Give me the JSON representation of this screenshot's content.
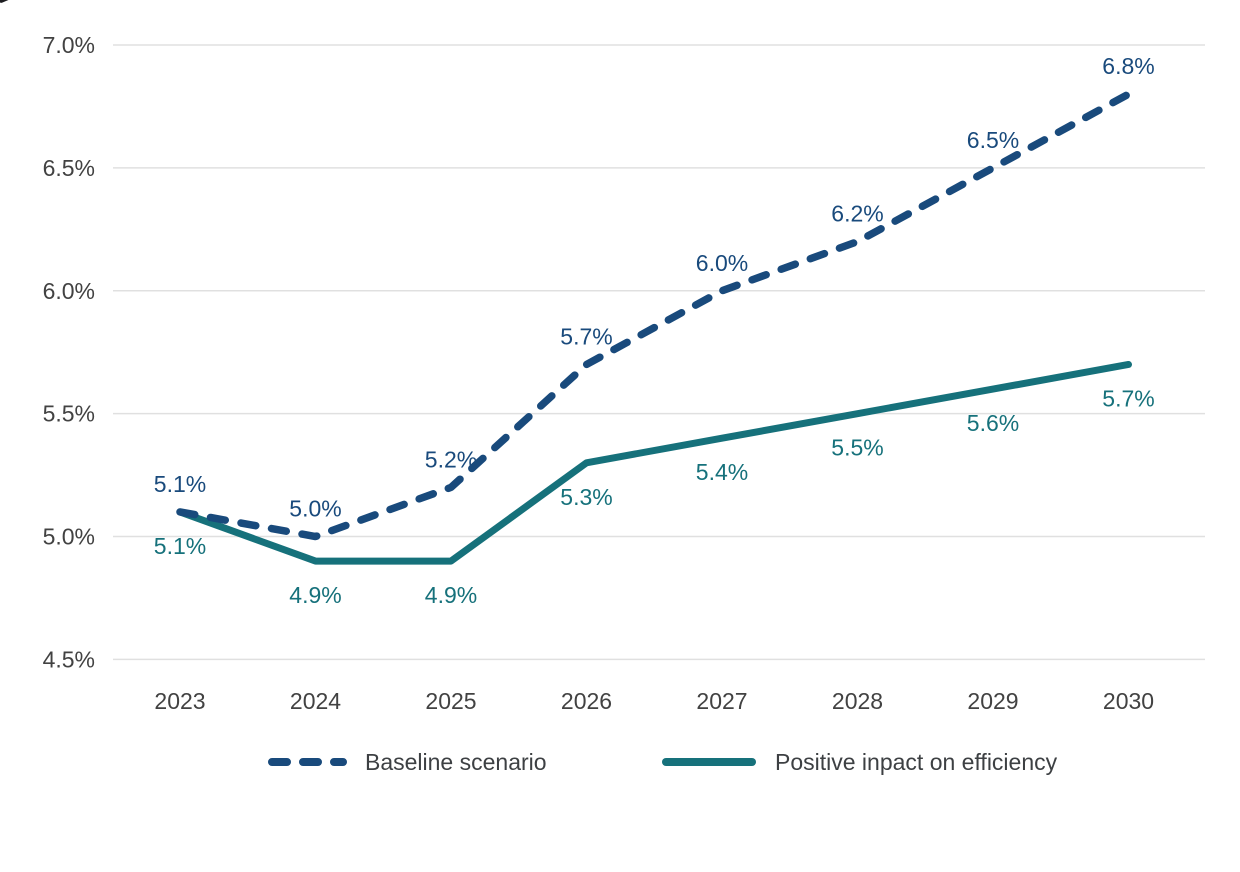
{
  "chart_data": {
    "type": "line",
    "categories": [
      "2023",
      "2024",
      "2025",
      "2026",
      "2027",
      "2028",
      "2029",
      "2030"
    ],
    "series": [
      {
        "name": "Baseline scenario",
        "style": "dashed",
        "color": "#194a7c",
        "values": [
          5.1,
          5.0,
          5.2,
          5.7,
          6.0,
          6.2,
          6.5,
          6.8
        ],
        "point_labels": [
          "5.1%",
          "5.0%",
          "5.2%",
          "5.7%",
          "6.0%",
          "6.2%",
          "6.5%",
          "6.8%"
        ],
        "label_position": "above"
      },
      {
        "name": "Positive inpact on efficiency",
        "style": "solid",
        "color": "#16717b",
        "values": [
          5.1,
          4.9,
          4.9,
          5.3,
          5.4,
          5.5,
          5.6,
          5.7
        ],
        "point_labels": [
          "5.1%",
          "4.9%",
          "4.9%",
          "5.3%",
          "5.4%",
          "5.5%",
          "5.6%",
          "5.7%"
        ],
        "label_position": "below"
      }
    ],
    "title": "",
    "xlabel": "",
    "ylabel": "",
    "ylim": [
      4.5,
      7.0
    ],
    "ytick_step": 0.5,
    "yticks": [
      "7.0%",
      "6.5%",
      "6.0%",
      "5.5%",
      "5.0%",
      "4.5%"
    ],
    "grid": "horizontal",
    "legend_position": "bottom"
  },
  "colors": {
    "background": "#ffffff",
    "gridline": "#e0e0e0",
    "axis_text": "#424242",
    "legend_text": "#3d4043",
    "baseline_series": "#194a7c",
    "efficiency_series": "#16717b"
  }
}
